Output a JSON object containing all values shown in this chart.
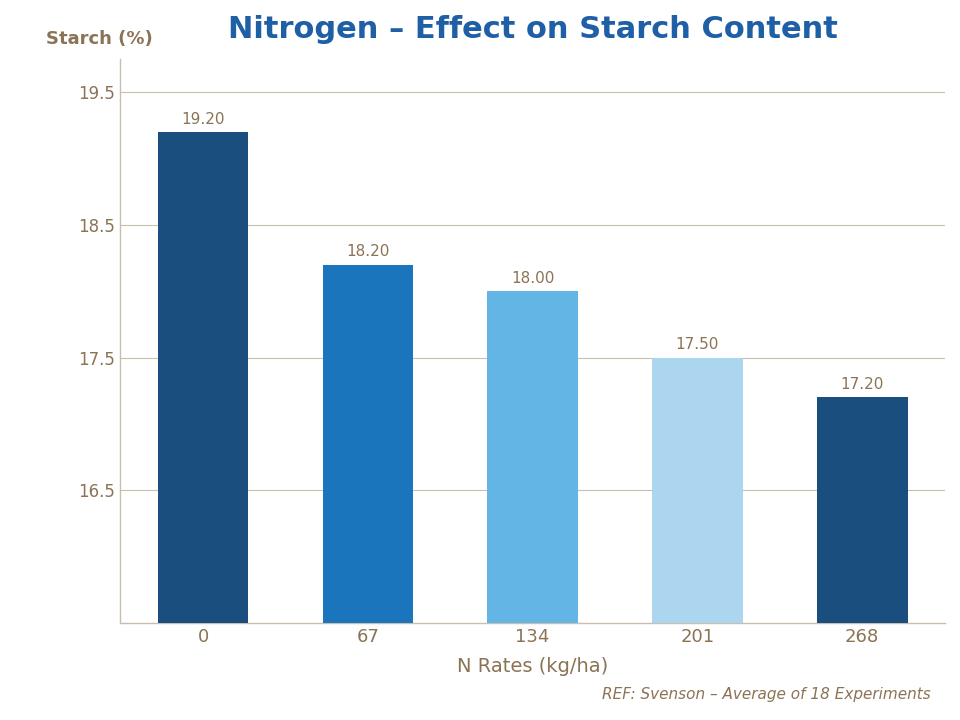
{
  "title": "Nitrogen – Effect on Starch Content",
  "title_color": "#1F5FA6",
  "title_fontsize": 22,
  "xlabel": "N Rates (kg/ha)",
  "ylabel": "Starch (%)",
  "xlabel_fontsize": 14,
  "ylabel_fontsize": 13,
  "categories": [
    "0",
    "67",
    "134",
    "201",
    "268"
  ],
  "values": [
    19.2,
    18.2,
    18.0,
    17.5,
    17.2
  ],
  "bar_colors": [
    "#1A4E7E",
    "#1B75BC",
    "#62B5E5",
    "#ACD6F0",
    "#1A4E7E"
  ],
  "ylim": [
    15.5,
    19.75
  ],
  "yticks": [
    16.5,
    17.5,
    18.5,
    19.5
  ],
  "ytick_labels": [
    "16.5",
    "17.5",
    "18.5",
    "19.5"
  ],
  "label_fontsize": 11,
  "label_color": "#8B7355",
  "annotation": "REF: Svenson – Average of 18 Experiments",
  "annotation_color": "#8B7355",
  "annotation_fontsize": 11,
  "background_color": "#FFFFFF",
  "grid_color": "#C8BFAF",
  "axis_color": "#C8BFAF",
  "tick_label_color": "#8B7355",
  "bar_width": 0.55
}
